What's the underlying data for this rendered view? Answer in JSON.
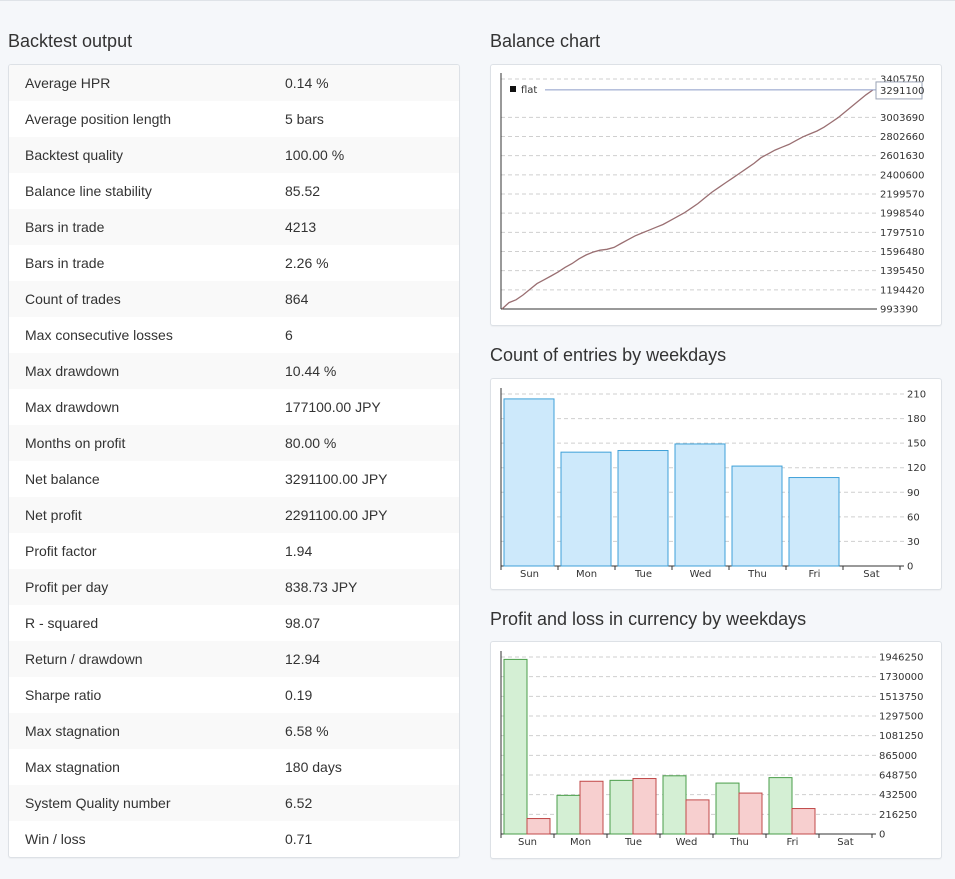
{
  "backtest": {
    "title": "Backtest output",
    "rows": [
      {
        "label": "Average HPR",
        "value": "0.14 %"
      },
      {
        "label": "Average position length",
        "value": "5 bars"
      },
      {
        "label": "Backtest quality",
        "value": "100.00 %"
      },
      {
        "label": "Balance line stability",
        "value": "85.52"
      },
      {
        "label": "Bars in trade",
        "value": "4213"
      },
      {
        "label": "Bars in trade",
        "value": "2.26 %"
      },
      {
        "label": "Count of trades",
        "value": "864"
      },
      {
        "label": "Max consecutive losses",
        "value": "6"
      },
      {
        "label": "Max drawdown",
        "value": "10.44 %"
      },
      {
        "label": "Max drawdown",
        "value": "177100.00 JPY"
      },
      {
        "label": "Months on profit",
        "value": "80.00 %"
      },
      {
        "label": "Net balance",
        "value": "3291100.00 JPY"
      },
      {
        "label": "Net profit",
        "value": "2291100.00 JPY"
      },
      {
        "label": "Profit factor",
        "value": "1.94"
      },
      {
        "label": "Profit per day",
        "value": "838.73 JPY"
      },
      {
        "label": "R - squared",
        "value": "98.07"
      },
      {
        "label": "Return / drawdown",
        "value": "12.94"
      },
      {
        "label": "Sharpe ratio",
        "value": "0.19"
      },
      {
        "label": "Max stagnation",
        "value": "6.58 %"
      },
      {
        "label": "Max stagnation",
        "value": "180 days"
      },
      {
        "label": "System Quality number",
        "value": "6.52"
      },
      {
        "label": "Win / loss",
        "value": "0.71"
      }
    ]
  },
  "chart_data": [
    {
      "type": "line",
      "title": "Balance chart",
      "legend": {
        "entry": "flat",
        "placement": "top-left"
      },
      "y_ticks": [
        "3405750",
        "3003690",
        "2802660",
        "2601630",
        "2400600",
        "2199570",
        "1998540",
        "1797510",
        "1596480",
        "1395450",
        "1194420",
        "993390"
      ],
      "ylim": [
        993390,
        3405750
      ],
      "current_value_label": "3291100",
      "flat_level": 3291100,
      "line_color": "#9a6f72",
      "flat_color": "#8b9bc7",
      "series": [
        {
          "values": [
            993390,
            1060000,
            1090000,
            1140000,
            1200000,
            1260000,
            1300000,
            1340000,
            1380000,
            1430000,
            1470000,
            1520000,
            1560000,
            1590000,
            1610000,
            1620000,
            1640000,
            1680000,
            1720000,
            1760000,
            1790000,
            1820000,
            1850000,
            1880000,
            1920000,
            1960000,
            2000000,
            2050000,
            2100000,
            2160000,
            2220000,
            2270000,
            2320000,
            2370000,
            2420000,
            2470000,
            2520000,
            2580000,
            2620000,
            2660000,
            2690000,
            2720000,
            2760000,
            2800000,
            2830000,
            2860000,
            2900000,
            2950000,
            3000000,
            3060000,
            3120000,
            3180000,
            3240000,
            3291100
          ]
        }
      ]
    },
    {
      "type": "bar",
      "title": "Count of entries by weekdays",
      "categories": [
        "Sun",
        "Mon",
        "Tue",
        "Wed",
        "Thu",
        "Fri",
        "Sat"
      ],
      "y_ticks": [
        "210",
        "180",
        "150",
        "120",
        "90",
        "60",
        "30",
        "0"
      ],
      "ylim": [
        0,
        210
      ],
      "series": [
        {
          "values": [
            204,
            139,
            141,
            149,
            122,
            108,
            0
          ],
          "color": "#cde9fb",
          "border": "#3ea0d8"
        }
      ]
    },
    {
      "type": "bar",
      "title": "Profit and loss in currency by weekdays",
      "categories": [
        "Sun",
        "Mon",
        "Tue",
        "Wed",
        "Thu",
        "Fri",
        "Sat"
      ],
      "y_ticks": [
        "1946250",
        "1730000",
        "1513750",
        "1297500",
        "1081250",
        "865000",
        "648750",
        "432500",
        "216250",
        "0"
      ],
      "ylim": [
        0,
        1946250
      ],
      "series": [
        {
          "values": [
            1920000,
            425000,
            590000,
            640000,
            560000,
            620000,
            0
          ],
          "color": "#d4efd4",
          "border": "#4a9e4a"
        },
        {
          "values": [
            170000,
            580000,
            610000,
            375000,
            450000,
            280000,
            0
          ],
          "color": "#f7cfcf",
          "border": "#c04848"
        }
      ]
    }
  ]
}
